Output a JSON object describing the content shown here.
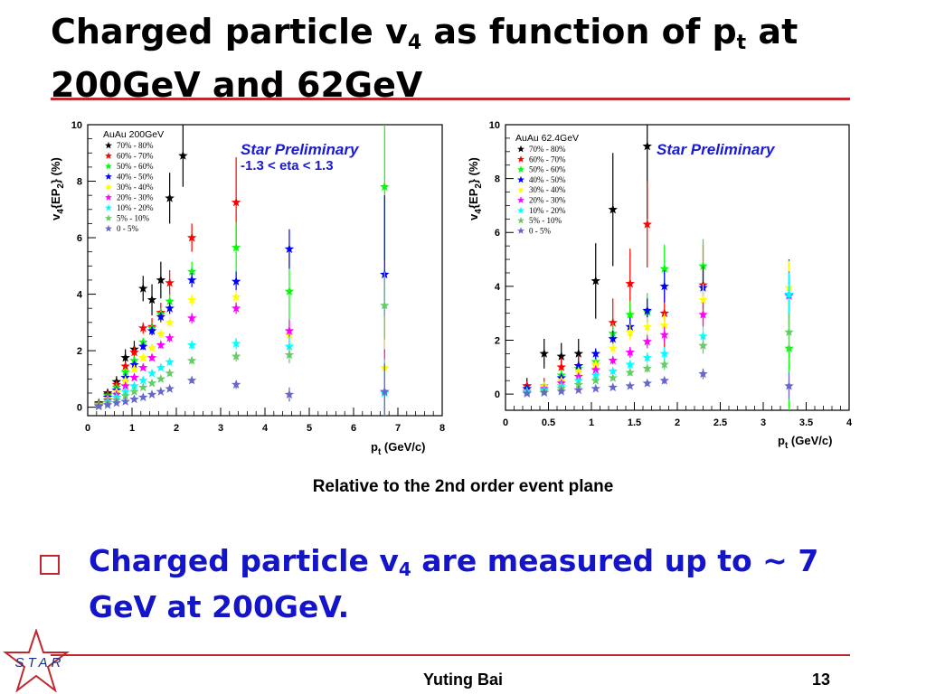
{
  "slide": {
    "title_pre": "Charged particle v",
    "title_sub": "4",
    "title_mid": " as function of p",
    "title_sub2": "t",
    "title_post": " at 200GeV and 62GeV",
    "caption": "Relative to the 2nd order event plane",
    "bullet_pre": "Charged particle v",
    "bullet_sub": "4",
    "bullet_post": " are measured up to ~ 7 GeV at 200GeV.",
    "author": "Yuting Bai",
    "page": "13",
    "logo_text": "STAR",
    "colors": {
      "accent": "#c0282d",
      "bullet_text": "#1414c8",
      "preliminary": "#1a1ad2"
    }
  },
  "chart_data": [
    {
      "type": "scatter",
      "system_label": "AuAu 200GeV",
      "preliminary": "Star Preliminary",
      "cut_label": "-1.3 < eta < 1.3",
      "xlabel": "p",
      "xlabel_sub": "t",
      "xlabel_unit": " (GeV/c)",
      "ylabel": "v",
      "ylabel_sub": "4",
      "ylabel_mid": "{EP",
      "ylabel_sub2": "2",
      "ylabel_end": "} (%)",
      "xlim": [
        0,
        8
      ],
      "ylim": [
        -0.3,
        10
      ],
      "xticks": [
        "0",
        "1",
        "2",
        "3",
        "4",
        "5",
        "6",
        "7",
        "8"
      ],
      "yticks": [
        "0",
        "2",
        "4",
        "6",
        "8",
        "10"
      ],
      "legend_position": "top-left",
      "series": [
        {
          "name": "70% - 80%",
          "color": "#000000",
          "x": [
            0.25,
            0.45,
            0.65,
            0.85,
            1.05,
            1.25,
            1.45,
            1.65,
            1.85,
            2.15
          ],
          "y": [
            0.15,
            0.5,
            0.9,
            1.75,
            2.05,
            4.2,
            3.8,
            4.5,
            7.4,
            8.9
          ],
          "err": [
            0.12,
            0.15,
            0.2,
            0.3,
            0.3,
            0.45,
            0.55,
            0.65,
            0.9,
            1.1
          ]
        },
        {
          "name": "60% - 70%",
          "color": "#ff0000",
          "x": [
            0.25,
            0.45,
            0.65,
            0.85,
            1.05,
            1.25,
            1.45,
            1.65,
            1.85,
            2.35,
            3.35
          ],
          "y": [
            0.12,
            0.45,
            0.8,
            1.45,
            1.95,
            2.8,
            2.85,
            3.35,
            4.4,
            6.0,
            7.25
          ],
          "err": [
            0.08,
            0.1,
            0.12,
            0.15,
            0.2,
            0.2,
            0.3,
            0.35,
            0.45,
            0.5,
            1.6
          ]
        },
        {
          "name": "50% - 60%",
          "color": "#00ff00",
          "x": [
            0.25,
            0.45,
            0.65,
            0.85,
            1.05,
            1.25,
            1.45,
            1.65,
            1.85,
            2.35,
            3.35,
            4.55,
            6.7
          ],
          "y": [
            0.1,
            0.4,
            0.7,
            1.25,
            1.65,
            2.3,
            2.8,
            3.3,
            3.75,
            4.8,
            5.65,
            4.1,
            7.8
          ],
          "err": [
            0.05,
            0.08,
            0.1,
            0.1,
            0.12,
            0.15,
            0.18,
            0.2,
            0.25,
            0.35,
            0.9,
            1.6,
            2.6
          ]
        },
        {
          "name": "40% - 50%",
          "color": "#0000ff",
          "x": [
            0.25,
            0.45,
            0.65,
            0.85,
            1.05,
            1.25,
            1.45,
            1.65,
            1.85,
            2.35,
            3.35,
            4.55,
            6.7
          ],
          "y": [
            0.08,
            0.35,
            0.6,
            1.05,
            1.5,
            2.15,
            2.7,
            3.2,
            3.5,
            4.5,
            4.45,
            5.6,
            4.7
          ],
          "err": [
            0.05,
            0.05,
            0.08,
            0.08,
            0.1,
            0.12,
            0.15,
            0.15,
            0.2,
            0.25,
            0.35,
            0.7,
            2.8
          ]
        },
        {
          "name": "30% - 40%",
          "color": "#ffff00",
          "x": [
            0.25,
            0.45,
            0.65,
            0.85,
            1.05,
            1.25,
            1.45,
            1.65,
            1.85,
            2.35,
            3.35,
            4.55,
            6.7
          ],
          "y": [
            0.08,
            0.3,
            0.55,
            0.95,
            1.35,
            1.75,
            2.1,
            2.6,
            3.0,
            3.8,
            3.9,
            2.55,
            1.4
          ],
          "err": [
            0.04,
            0.05,
            0.05,
            0.07,
            0.08,
            0.1,
            0.12,
            0.15,
            0.18,
            0.2,
            0.25,
            0.5,
            1.8
          ]
        },
        {
          "name": "20% - 30%",
          "color": "#ff00ff",
          "x": [
            0.25,
            0.45,
            0.65,
            0.85,
            1.05,
            1.25,
            1.45,
            1.65,
            1.85,
            2.35,
            3.35,
            4.55,
            6.7
          ],
          "y": [
            0.06,
            0.25,
            0.45,
            0.75,
            1.05,
            1.4,
            1.75,
            2.2,
            2.45,
            3.15,
            3.5,
            2.7,
            0.55
          ],
          "err": [
            0.03,
            0.04,
            0.05,
            0.05,
            0.07,
            0.08,
            0.1,
            0.12,
            0.15,
            0.18,
            0.2,
            0.4,
            1.5
          ]
        },
        {
          "name": "10% - 20%",
          "color": "#00ffff",
          "x": [
            0.25,
            0.45,
            0.65,
            0.85,
            1.05,
            1.25,
            1.45,
            1.65,
            1.85,
            2.35,
            3.35,
            4.55,
            6.7
          ],
          "y": [
            0.05,
            0.2,
            0.35,
            0.55,
            0.75,
            0.95,
            1.2,
            1.4,
            1.6,
            2.2,
            2.25,
            2.15,
            0.5
          ],
          "err": [
            0.03,
            0.03,
            0.04,
            0.05,
            0.05,
            0.06,
            0.08,
            0.1,
            0.12,
            0.15,
            0.2,
            0.35,
            1.2
          ]
        },
        {
          "name": "5% - 10%",
          "color": "#66cc66",
          "x": [
            0.25,
            0.45,
            0.65,
            0.85,
            1.05,
            1.25,
            1.45,
            1.65,
            1.85,
            2.35,
            3.35,
            4.55,
            6.7
          ],
          "y": [
            0.04,
            0.15,
            0.25,
            0.4,
            0.55,
            0.7,
            0.85,
            1.0,
            1.2,
            1.65,
            1.8,
            1.85,
            3.6
          ],
          "err": [
            0.02,
            0.03,
            0.03,
            0.04,
            0.05,
            0.05,
            0.06,
            0.08,
            0.1,
            0.12,
            0.18,
            0.3,
            1.2
          ]
        },
        {
          "name": "0 - 5%",
          "color": "#6666cc",
          "x": [
            0.25,
            0.45,
            0.65,
            0.85,
            1.05,
            1.25,
            1.45,
            1.65,
            1.85,
            2.35,
            3.35,
            4.55,
            6.7
          ],
          "y": [
            0.03,
            0.08,
            0.15,
            0.2,
            0.28,
            0.35,
            0.45,
            0.55,
            0.65,
            0.95,
            0.8,
            0.45,
            0.55
          ],
          "err": [
            0.02,
            0.02,
            0.03,
            0.03,
            0.04,
            0.05,
            0.05,
            0.06,
            0.08,
            0.1,
            0.15,
            0.25,
            1.0
          ]
        }
      ]
    },
    {
      "type": "scatter",
      "system_label": "AuAu 62.4GeV",
      "preliminary": "Star Preliminary",
      "xlabel": "p",
      "xlabel_sub": "t",
      "xlabel_unit": " (GeV/c)",
      "ylabel": "v",
      "ylabel_sub": "4",
      "ylabel_mid": "{EP",
      "ylabel_sub2": "2",
      "ylabel_end": "} (%)",
      "xlim": [
        0,
        4
      ],
      "ylim": [
        -0.6,
        10
      ],
      "xticks": [
        "0",
        "0.5",
        "1",
        "1.5",
        "2",
        "2.5",
        "3",
        "3.5",
        "4"
      ],
      "yticks": [
        "0",
        "2",
        "4",
        "6",
        "8",
        "10"
      ],
      "legend_position": "top-left",
      "series": [
        {
          "name": "70% - 80%",
          "color": "#000000",
          "x": [
            0.25,
            0.45,
            0.65,
            0.85,
            1.05,
            1.25,
            1.65
          ],
          "y": [
            0.3,
            1.5,
            1.4,
            1.5,
            4.2,
            6.85,
            9.2
          ],
          "err": [
            0.3,
            0.55,
            0.5,
            0.55,
            1.4,
            2.1,
            2.7
          ]
        },
        {
          "name": "60% - 70%",
          "color": "#ff0000",
          "x": [
            0.25,
            0.45,
            0.65,
            0.85,
            1.05,
            1.25,
            1.45,
            1.65,
            1.85,
            2.3
          ],
          "y": [
            0.3,
            0.3,
            1.0,
            1.05,
            1.1,
            2.65,
            4.1,
            6.3,
            3.0,
            4.05
          ],
          "err": [
            0.2,
            0.3,
            0.35,
            0.4,
            0.45,
            0.9,
            1.3,
            1.6,
            1.3,
            1.5
          ]
        },
        {
          "name": "50% - 60%",
          "color": "#00ff00",
          "x": [
            0.25,
            0.45,
            0.65,
            0.85,
            1.05,
            1.25,
            1.45,
            1.65,
            1.85,
            2.3,
            3.3
          ],
          "y": [
            0.2,
            0.3,
            0.7,
            0.95,
            1.2,
            2.25,
            2.95,
            3.05,
            4.65,
            4.75,
            1.7
          ],
          "err": [
            0.1,
            0.15,
            0.2,
            0.25,
            0.3,
            0.4,
            0.5,
            0.7,
            0.9,
            1.0,
            2.5
          ]
        },
        {
          "name": "40% - 50%",
          "color": "#0000ff",
          "x": [
            0.25,
            0.45,
            0.65,
            0.85,
            1.05,
            1.25,
            1.45,
            1.65,
            1.85,
            2.3,
            3.3
          ],
          "y": [
            0.2,
            0.3,
            0.6,
            1.05,
            1.5,
            2.05,
            2.5,
            3.1,
            4.0,
            3.95,
            3.7
          ],
          "err": [
            0.08,
            0.1,
            0.12,
            0.15,
            0.2,
            0.3,
            0.35,
            0.45,
            0.6,
            0.8,
            1.3
          ]
        },
        {
          "name": "30% - 40%",
          "color": "#ffff00",
          "x": [
            0.25,
            0.45,
            0.65,
            0.85,
            1.05,
            1.25,
            1.45,
            1.65,
            1.85,
            2.3,
            3.3
          ],
          "y": [
            0.1,
            0.3,
            0.5,
            0.85,
            1.1,
            1.7,
            2.3,
            2.5,
            2.55,
            3.5,
            3.95
          ],
          "err": [
            0.06,
            0.08,
            0.1,
            0.12,
            0.15,
            0.2,
            0.3,
            0.35,
            0.45,
            0.6,
            1.0
          ]
        },
        {
          "name": "20% - 30%",
          "color": "#ff00ff",
          "x": [
            0.25,
            0.45,
            0.65,
            0.85,
            1.05,
            1.25,
            1.45,
            1.65,
            1.85,
            2.3,
            3.3
          ],
          "y": [
            0.1,
            0.2,
            0.4,
            0.65,
            0.9,
            1.25,
            1.55,
            1.95,
            2.2,
            2.95,
            3.65
          ],
          "err": [
            0.05,
            0.06,
            0.08,
            0.1,
            0.12,
            0.15,
            0.2,
            0.25,
            0.3,
            0.45,
            0.9
          ]
        },
        {
          "name": "10% - 20%",
          "color": "#00ffff",
          "x": [
            0.25,
            0.45,
            0.65,
            0.85,
            1.05,
            1.25,
            1.45,
            1.65,
            1.85,
            2.3,
            3.3
          ],
          "y": [
            0.1,
            0.15,
            0.3,
            0.5,
            0.7,
            0.85,
            1.1,
            1.35,
            1.5,
            2.15,
            3.7
          ],
          "err": [
            0.04,
            0.05,
            0.06,
            0.08,
            0.1,
            0.12,
            0.15,
            0.2,
            0.25,
            0.35,
            0.8
          ]
        },
        {
          "name": "5% - 10%",
          "color": "#66cc66",
          "x": [
            0.25,
            0.45,
            0.65,
            0.85,
            1.05,
            1.25,
            1.45,
            1.65,
            1.85,
            2.3,
            3.3
          ],
          "y": [
            0.05,
            0.1,
            0.2,
            0.35,
            0.5,
            0.6,
            0.8,
            0.95,
            1.1,
            1.8,
            2.3
          ],
          "err": [
            0.03,
            0.04,
            0.05,
            0.06,
            0.08,
            0.1,
            0.12,
            0.15,
            0.2,
            0.3,
            0.7
          ]
        },
        {
          "name": "0 - 5%",
          "color": "#6666cc",
          "x": [
            0.25,
            0.45,
            0.65,
            0.85,
            1.05,
            1.25,
            1.45,
            1.65,
            1.85,
            2.3,
            3.3
          ],
          "y": [
            0.02,
            0.05,
            0.1,
            0.15,
            0.2,
            0.25,
            0.3,
            0.4,
            0.5,
            0.75,
            0.3
          ],
          "err": [
            0.02,
            0.03,
            0.03,
            0.04,
            0.05,
            0.06,
            0.08,
            0.1,
            0.12,
            0.2,
            0.5
          ]
        }
      ]
    }
  ]
}
